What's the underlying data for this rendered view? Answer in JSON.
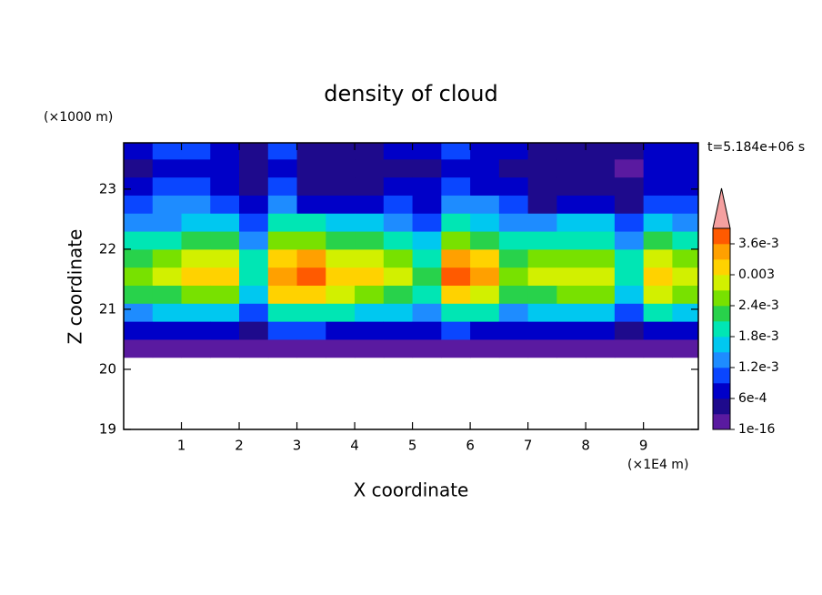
{
  "chart_data": {
    "type": "contour",
    "title": "density of cloud",
    "y_unit": "(×1000 m)",
    "time_label": "t=5.184e+06 s",
    "xlabel": "X coordinate",
    "ylabel": "Z coordinate",
    "x_unit": "(×1E4 m)",
    "xlim": [
      0,
      9.95
    ],
    "ylim": [
      19,
      23.77
    ],
    "xticks": [
      1,
      2,
      3,
      4,
      5,
      6,
      7,
      8,
      9
    ],
    "yticks": [
      19,
      20,
      21,
      22,
      23
    ],
    "x": [
      0.25,
      0.75,
      1.25,
      1.75,
      2.25,
      2.75,
      3.25,
      3.75,
      4.25,
      4.75,
      5.25,
      5.75,
      6.25,
      6.75,
      7.25,
      7.75,
      8.25,
      8.75,
      9.25,
      9.75
    ],
    "y": [
      20.35,
      20.65,
      20.95,
      21.25,
      21.55,
      21.85,
      22.15,
      22.45,
      22.75,
      23.05,
      23.35,
      23.65
    ],
    "values": [
      [
        0.0001,
        0.0006,
        0.0014,
        0.0021,
        0.0025,
        0.0023,
        0.0018,
        0.0013,
        0.0009,
        0.0006,
        0.0005,
        0.0006
      ],
      [
        0.0001,
        0.0007,
        0.0015,
        0.0023,
        0.0027,
        0.0024,
        0.0019,
        0.0014,
        0.0012,
        0.0009,
        0.0007,
        0.0009
      ],
      [
        0.0001,
        0.0008,
        0.0017,
        0.0026,
        0.003,
        0.0027,
        0.0021,
        0.0015,
        0.0014,
        0.001,
        0.0008,
        0.001
      ],
      [
        0.0001,
        0.0008,
        0.0017,
        0.0026,
        0.0031,
        0.0028,
        0.0022,
        0.0016,
        0.0011,
        0.0008,
        0.0006,
        0.0008
      ],
      [
        0.0001,
        0.0005,
        0.0011,
        0.0017,
        0.002,
        0.0018,
        0.0014,
        0.001,
        0.0007,
        0.0005,
        0.0004,
        0.0005
      ],
      [
        0.0001,
        0.0009,
        0.0019,
        0.003,
        0.0035,
        0.0032,
        0.0025,
        0.0018,
        0.0012,
        0.0009,
        0.0007,
        0.0009
      ],
      [
        0.0001,
        0.0009,
        0.002,
        0.0031,
        0.0037,
        0.0033,
        0.0026,
        0.0019,
        0.0008,
        0.0005,
        0.0004,
        0.0005
      ],
      [
        0.0001,
        0.0008,
        0.0018,
        0.0027,
        0.0032,
        0.0029,
        0.0022,
        0.0016,
        0.0007,
        0.0005,
        0.0004,
        0.0005
      ],
      [
        0.0001,
        0.0008,
        0.0017,
        0.0026,
        0.0031,
        0.0028,
        0.0022,
        0.0016,
        0.0007,
        0.0005,
        0.0004,
        0.0005
      ],
      [
        0.0001,
        0.0007,
        0.0015,
        0.0023,
        0.0027,
        0.0024,
        0.0019,
        0.0014,
        0.0009,
        0.0007,
        0.0005,
        0.0007
      ],
      [
        0.0001,
        0.0006,
        0.0012,
        0.0019,
        0.0022,
        0.002,
        0.0015,
        0.0011,
        0.0008,
        0.0006,
        0.0004,
        0.0006
      ],
      [
        0.0001,
        0.0009,
        0.002,
        0.0031,
        0.0037,
        0.0033,
        0.0026,
        0.0019,
        0.0013,
        0.0009,
        0.0007,
        0.0009
      ],
      [
        0.0001,
        0.0008,
        0.0018,
        0.0028,
        0.0033,
        0.003,
        0.0023,
        0.0017,
        0.0012,
        0.0008,
        0.0007,
        0.0008
      ],
      [
        0.0001,
        0.0006,
        0.0014,
        0.0021,
        0.0025,
        0.0023,
        0.0018,
        0.0013,
        0.0009,
        0.0006,
        0.0005,
        0.0006
      ],
      [
        0.0001,
        0.0007,
        0.0015,
        0.0023,
        0.0027,
        0.0024,
        0.0019,
        0.0014,
        0.0005,
        0.0004,
        0.0003,
        0.0004
      ],
      [
        0.0001,
        0.0007,
        0.0016,
        0.0025,
        0.0029,
        0.0026,
        0.002,
        0.0015,
        0.0006,
        0.0004,
        0.0004,
        0.0004
      ],
      [
        0.0001,
        0.0007,
        0.0016,
        0.0025,
        0.0029,
        0.0026,
        0.002,
        0.0015,
        0.0006,
        0.0004,
        0.0004,
        0.0004
      ],
      [
        0.0001,
        0.0005,
        0.0011,
        0.0017,
        0.002,
        0.0018,
        0.0014,
        0.001,
        0.0004,
        0.0003,
        0.0002,
        0.0003
      ],
      [
        0.0001,
        0.0008,
        0.0018,
        0.0027,
        0.0032,
        0.0029,
        0.0022,
        0.0016,
        0.0011,
        0.0008,
        0.0006,
        0.0008
      ],
      [
        0.0001,
        0.0007,
        0.0015,
        0.0024,
        0.0028,
        0.0025,
        0.002,
        0.0014,
        0.001,
        0.0007,
        0.0006,
        0.0007
      ]
    ],
    "levels": [
      1e-16,
      0.0003,
      0.0006,
      0.0009,
      0.0012,
      0.0015,
      0.0018,
      0.0021,
      0.0024,
      0.0027,
      0.003,
      0.0033,
      0.0036,
      0.0039
    ],
    "colors": [
      "#5a1aa0",
      "#1e0a8c",
      "#0000c8",
      "#0a46ff",
      "#1e8cff",
      "#00c8f0",
      "#00e6b4",
      "#28d24b",
      "#78e100",
      "#d2f000",
      "#ffd200",
      "#ffa000",
      "#ff5a00"
    ],
    "extend_color": "#f5a0a0",
    "colorbar_ticks": [
      1e-16,
      {
        "value": 0.0006,
        "label": "6e-4"
      },
      {
        "value": 0.0012,
        "label": "1.2e-3"
      },
      {
        "value": 0.0018,
        "label": "1.8e-3"
      },
      {
        "value": 0.0024,
        "label": "2.4e-3"
      },
      0.003,
      {
        "value": 0.0036,
        "label": "3.6e-3"
      }
    ]
  }
}
